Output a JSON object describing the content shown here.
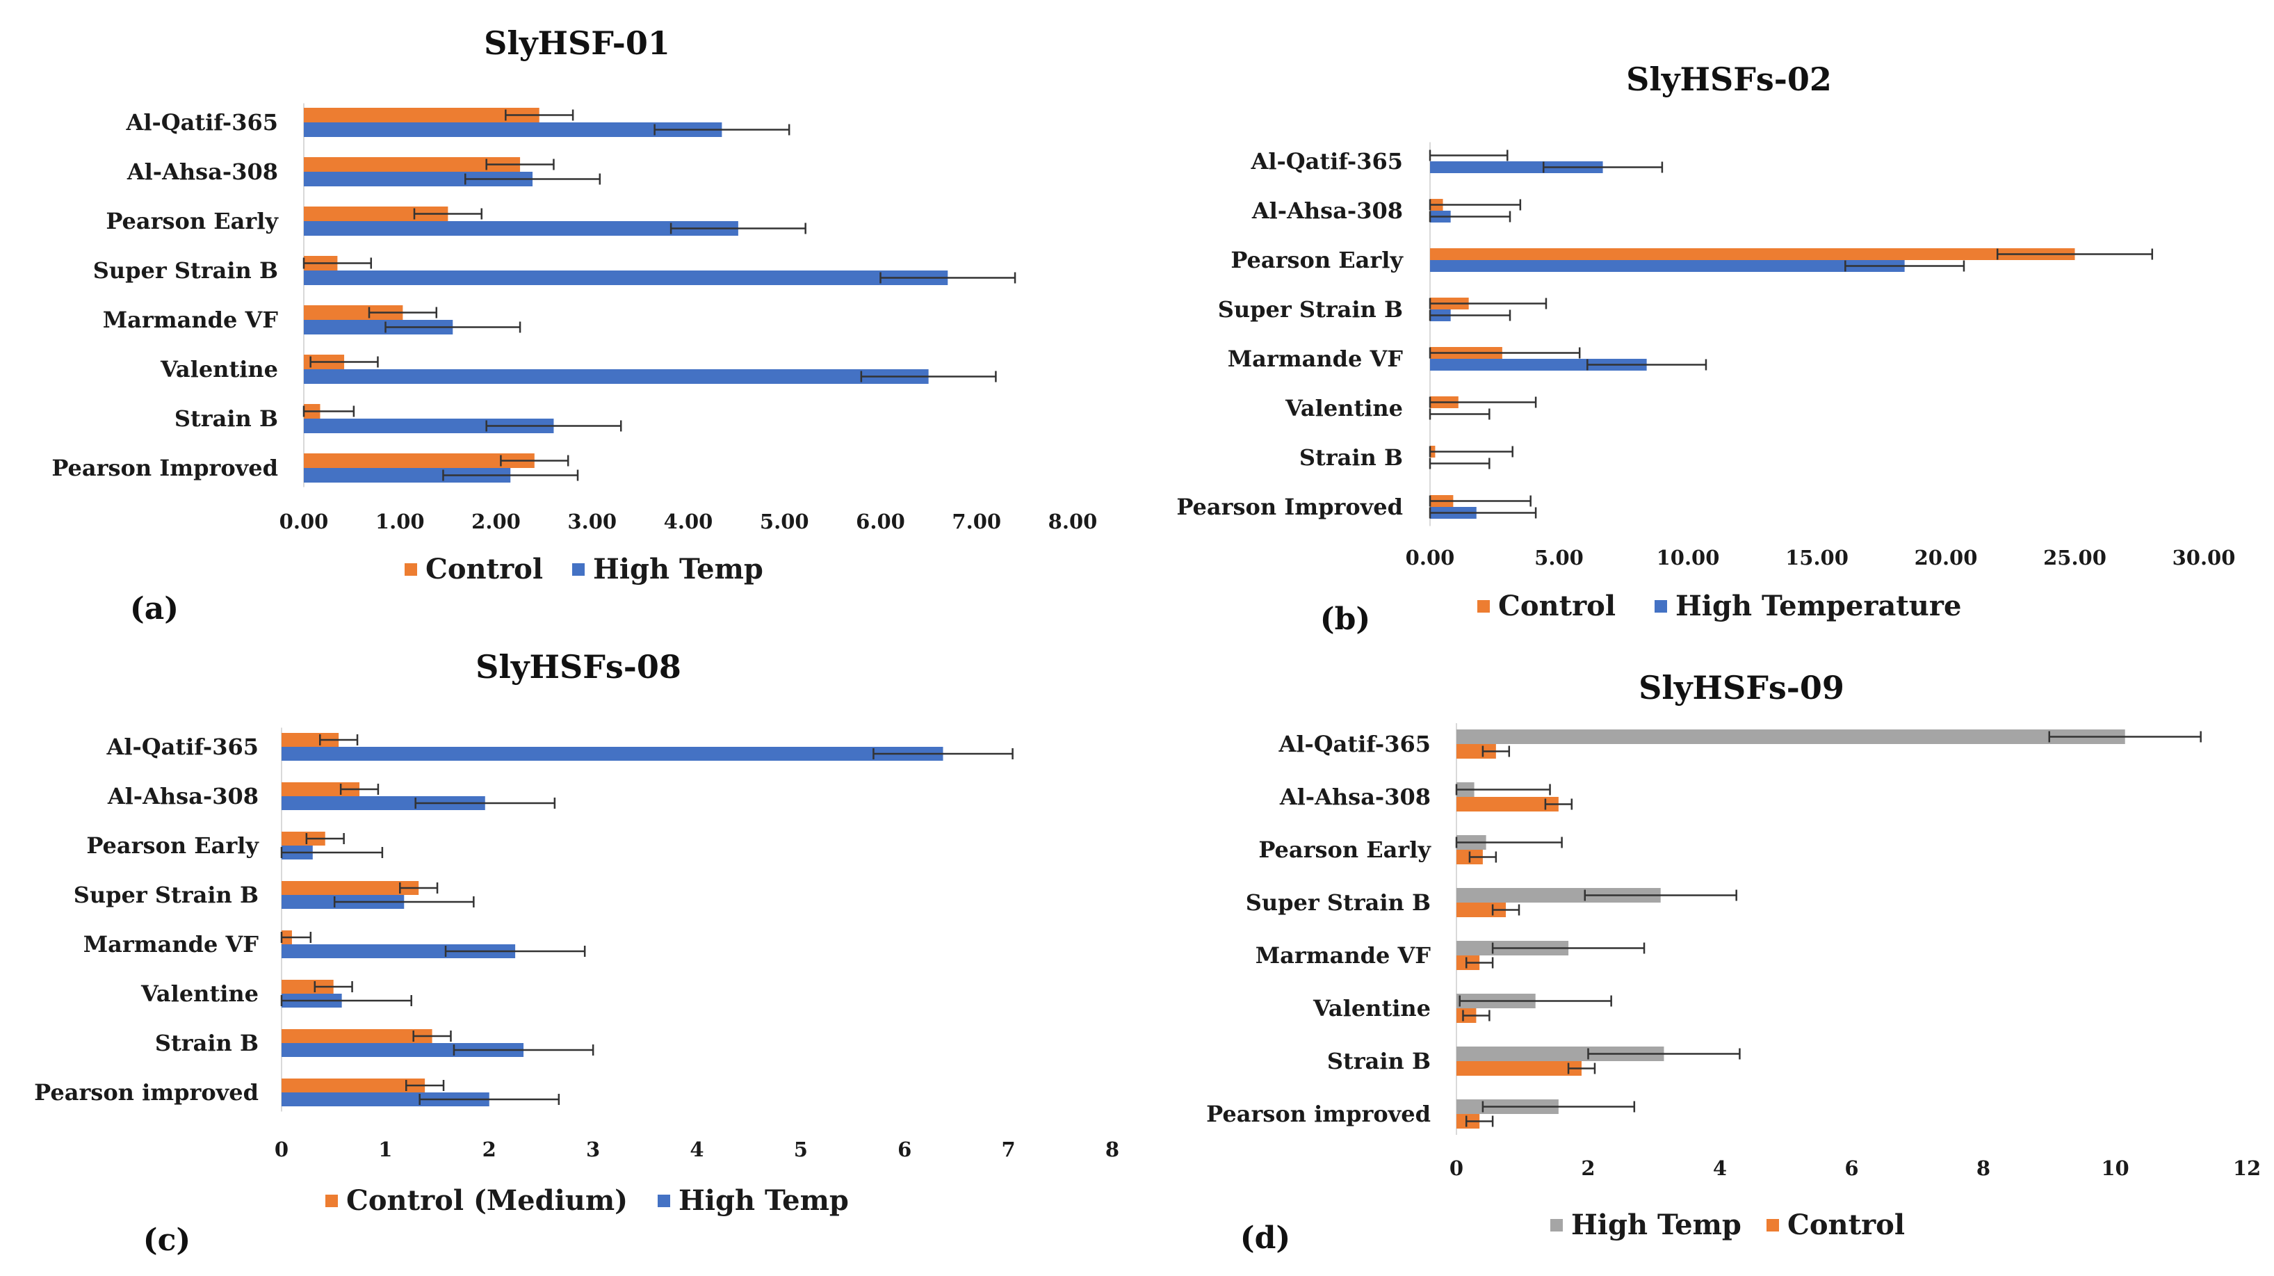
{
  "chart_data": [
    {
      "type": "bar",
      "orientation": "horizontal",
      "panel_label": "(a)",
      "title": "SlyHSF-01",
      "categories": [
        "Al-Qatif-365",
        "Al-Ahsa-308",
        "Pearson Early",
        "Super Strain B",
        "Marmande VF",
        "Valentine",
        "Strain B",
        "Pearson   Improved"
      ],
      "series": [
        {
          "name": "Control",
          "color": "#ED7D31",
          "values": [
            2.45,
            2.25,
            1.5,
            0.35,
            1.03,
            0.42,
            0.17,
            2.4
          ],
          "errors": [
            0.35,
            0.35,
            0.35,
            0.35,
            0.35,
            0.35,
            0.35,
            0.35
          ]
        },
        {
          "name": "High Temp",
          "color": "#4472C4",
          "values": [
            4.35,
            2.38,
            4.52,
            6.7,
            1.55,
            6.5,
            2.6,
            2.15
          ],
          "errors": [
            0.7,
            0.7,
            0.7,
            0.7,
            0.7,
            0.7,
            0.7,
            0.7
          ]
        }
      ],
      "xlim": [
        0,
        8
      ],
      "ticks": [
        "0.00",
        "1.00",
        "2.00",
        "3.00",
        "4.00",
        "5.00",
        "6.00",
        "7.00",
        "8.00"
      ],
      "legend": [
        "Control",
        "High Temp"
      ],
      "legend_position": "bottom"
    },
    {
      "type": "bar",
      "orientation": "horizontal",
      "panel_label": "(b)",
      "title": "SlyHSFs-02",
      "categories": [
        "Al-Qatif-365",
        "Al-Ahsa-308",
        "Pearson Early",
        "Super Strain B",
        "Marmande VF",
        "Valentine",
        "Strain B",
        "Pearson   Improved"
      ],
      "series": [
        {
          "name": "Control",
          "color": "#ED7D31",
          "values": [
            0,
            0.5,
            25,
            1.5,
            2.8,
            1.1,
            0.2,
            0.9
          ],
          "errors": [
            3,
            3,
            3,
            3,
            3,
            3,
            3,
            3
          ]
        },
        {
          "name": "High Temperature",
          "color": "#4472C4",
          "values": [
            6.7,
            0.8,
            18.4,
            0.8,
            8.4,
            0,
            0,
            1.8
          ],
          "errors": [
            2.3,
            2.3,
            2.3,
            2.3,
            2.3,
            2.3,
            2.3,
            2.3
          ]
        }
      ],
      "xlim": [
        0,
        30
      ],
      "ticks": [
        "0.00",
        "5.00",
        "10.00",
        "15.00",
        "20.00",
        "25.00",
        "30.00"
      ],
      "legend": [
        "Control",
        "High Temperature"
      ],
      "legend_position": "bottom"
    },
    {
      "type": "bar",
      "orientation": "horizontal",
      "panel_label": "(c)",
      "title": "SlyHSFs-08",
      "categories": [
        "Al-Qatif-365",
        "Al-Ahsa-308",
        "Pearson Early",
        "Super Strain B",
        "Marmande VF",
        "Valentine",
        "Strain B",
        "Pearson   improved"
      ],
      "series": [
        {
          "name": "Control (Medium)",
          "color": "#ED7D31",
          "values": [
            0.55,
            0.75,
            0.42,
            1.32,
            0.1,
            0.5,
            1.45,
            1.38
          ],
          "errors": [
            0.18,
            0.18,
            0.18,
            0.18,
            0.18,
            0.18,
            0.18,
            0.18
          ]
        },
        {
          "name": "High Temp",
          "color": "#4472C4",
          "values": [
            6.37,
            1.96,
            0.3,
            1.18,
            2.25,
            0.58,
            2.33,
            2
          ],
          "errors": [
            0.67,
            0.67,
            0.67,
            0.67,
            0.67,
            0.67,
            0.67,
            0.67
          ]
        }
      ],
      "xlim": [
        0,
        8
      ],
      "ticks": [
        "0",
        "1",
        "2",
        "3",
        "4",
        "5",
        "6",
        "7",
        "8"
      ],
      "legend": [
        "Control (Medium)",
        "High Temp"
      ],
      "legend_position": "bottom"
    },
    {
      "type": "bar",
      "orientation": "horizontal",
      "panel_label": "(d)",
      "title": "SlyHSFs-09",
      "categories": [
        "Al-Qatif-365",
        "Al-Ahsa-308",
        "Pearson Early",
        "Super Strain B",
        "Marmande VF",
        "Valentine",
        "Strain B",
        "Pearson   improved"
      ],
      "series": [
        {
          "name": "High Temp",
          "color": "#A5A5A5",
          "values": [
            10.15,
            0.27,
            0.45,
            3.1,
            1.7,
            1.2,
            3.15,
            1.55
          ],
          "errors": [
            1.15,
            1.15,
            1.15,
            1.15,
            1.15,
            1.15,
            1.15,
            1.15
          ]
        },
        {
          "name": "Control",
          "color": "#ED7D31",
          "values": [
            0.6,
            1.55,
            0.4,
            0.75,
            0.35,
            0.3,
            1.9,
            0.35
          ],
          "errors": [
            0.2,
            0.2,
            0.2,
            0.2,
            0.2,
            0.2,
            0.2,
            0.2
          ]
        }
      ],
      "xlim": [
        0,
        12
      ],
      "ticks": [
        "0",
        "2",
        "4",
        "6",
        "8",
        "10",
        "12"
      ],
      "legend": [
        "High Temp",
        "Control"
      ],
      "legend_position": "bottom"
    }
  ]
}
